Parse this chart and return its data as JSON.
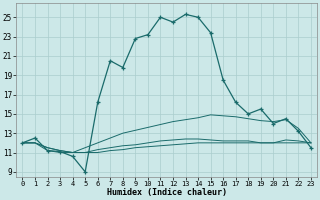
{
  "xlabel": "Humidex (Indice chaleur)",
  "ylabel": "",
  "background_color": "#cce8e8",
  "grid_color": "#aacece",
  "line_color": "#1a6b6b",
  "xlim": [
    -0.5,
    23.5
  ],
  "ylim": [
    8.5,
    26.5
  ],
  "xticks": [
    0,
    1,
    2,
    3,
    4,
    5,
    6,
    7,
    8,
    9,
    10,
    11,
    12,
    13,
    14,
    15,
    16,
    17,
    18,
    19,
    20,
    21,
    22,
    23
  ],
  "yticks": [
    9,
    11,
    13,
    15,
    17,
    19,
    21,
    23,
    25
  ],
  "main_line_x": [
    0,
    1,
    2,
    3,
    4,
    5,
    6,
    7,
    8,
    9,
    10,
    11,
    12,
    13,
    14,
    15,
    16,
    17,
    18,
    19,
    20,
    21,
    22,
    23
  ],
  "main_line_y": [
    12.0,
    12.5,
    11.2,
    11.1,
    10.6,
    9.0,
    16.2,
    20.5,
    19.8,
    22.8,
    23.2,
    25.0,
    24.5,
    25.3,
    25.0,
    23.4,
    18.5,
    16.2,
    15.0,
    15.5,
    14.0,
    14.5,
    13.2,
    11.5
  ],
  "line2_x": [
    0,
    1,
    2,
    3,
    4,
    5,
    6,
    7,
    8,
    9,
    10,
    11,
    12,
    13,
    14,
    15,
    16,
    17,
    18,
    19,
    20,
    21,
    22,
    23
  ],
  "line2_y": [
    12.0,
    12.0,
    11.2,
    11.0,
    11.0,
    11.5,
    12.0,
    12.5,
    13.0,
    13.3,
    13.6,
    13.9,
    14.2,
    14.4,
    14.6,
    14.9,
    14.8,
    14.7,
    14.5,
    14.3,
    14.2,
    14.4,
    13.5,
    12.0
  ],
  "line3_x": [
    0,
    1,
    2,
    3,
    4,
    5,
    6,
    7,
    8,
    9,
    10,
    11,
    12,
    13,
    14,
    15,
    16,
    17,
    18,
    19,
    20,
    21,
    22,
    23
  ],
  "line3_y": [
    12.0,
    12.0,
    11.5,
    11.2,
    11.0,
    11.0,
    11.3,
    11.5,
    11.7,
    11.8,
    12.0,
    12.2,
    12.3,
    12.4,
    12.4,
    12.3,
    12.2,
    12.2,
    12.2,
    12.0,
    12.0,
    12.3,
    12.2,
    12.0
  ],
  "line4_x": [
    0,
    1,
    2,
    3,
    4,
    5,
    6,
    7,
    8,
    9,
    10,
    11,
    12,
    13,
    14,
    15,
    16,
    17,
    18,
    19,
    20,
    21,
    22,
    23
  ],
  "line4_y": [
    12.0,
    12.0,
    11.5,
    11.2,
    11.0,
    11.0,
    11.0,
    11.2,
    11.3,
    11.5,
    11.6,
    11.7,
    11.8,
    11.9,
    12.0,
    12.0,
    12.0,
    12.0,
    12.0,
    12.0,
    12.0,
    12.0,
    12.0,
    12.0
  ]
}
